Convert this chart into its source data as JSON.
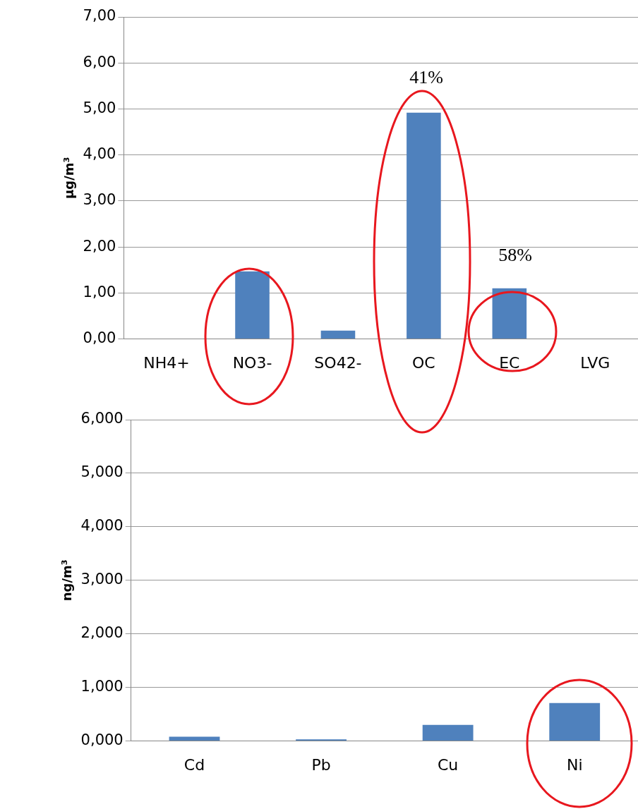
{
  "chart_data": [
    {
      "type": "bar",
      "ylabel": "µg/m³",
      "categories": [
        "NH4+",
        "NO3-",
        "SO42-",
        "OC",
        "EC",
        "LVG"
      ],
      "values": [
        0,
        1.47,
        0.18,
        4.92,
        1.1,
        0
      ],
      "color": "#4f81bd",
      "ylim": [
        0,
        7
      ],
      "yticks": [
        {
          "value": 0,
          "label": "0,00"
        },
        {
          "value": 1,
          "label": "1,00"
        },
        {
          "value": 2,
          "label": "2,00"
        },
        {
          "value": 3,
          "label": "3,00"
        },
        {
          "value": 4,
          "label": "4,00"
        },
        {
          "value": 5,
          "label": "5,00"
        },
        {
          "value": 6,
          "label": "6,00"
        },
        {
          "value": 7,
          "label": "7,00"
        }
      ],
      "grid": "y",
      "annotations": [
        "41%",
        "58%"
      ]
    },
    {
      "type": "bar",
      "ylabel": "ng/m³",
      "categories": [
        "Cd",
        "Pb",
        "Cu",
        "Ni"
      ],
      "values": [
        0.08,
        0.03,
        0.3,
        0.71
      ],
      "color": "#4f81bd",
      "ylim": [
        0,
        6
      ],
      "yticks": [
        {
          "value": 0,
          "label": "0,000"
        },
        {
          "value": 1,
          "label": "1,000"
        },
        {
          "value": 2,
          "label": "2,000"
        },
        {
          "value": 3,
          "label": "3,000"
        },
        {
          "value": 4,
          "label": "4,000"
        },
        {
          "value": 5,
          "label": "5,000"
        },
        {
          "value": 6,
          "label": "6,000"
        }
      ],
      "grid": "y"
    }
  ]
}
